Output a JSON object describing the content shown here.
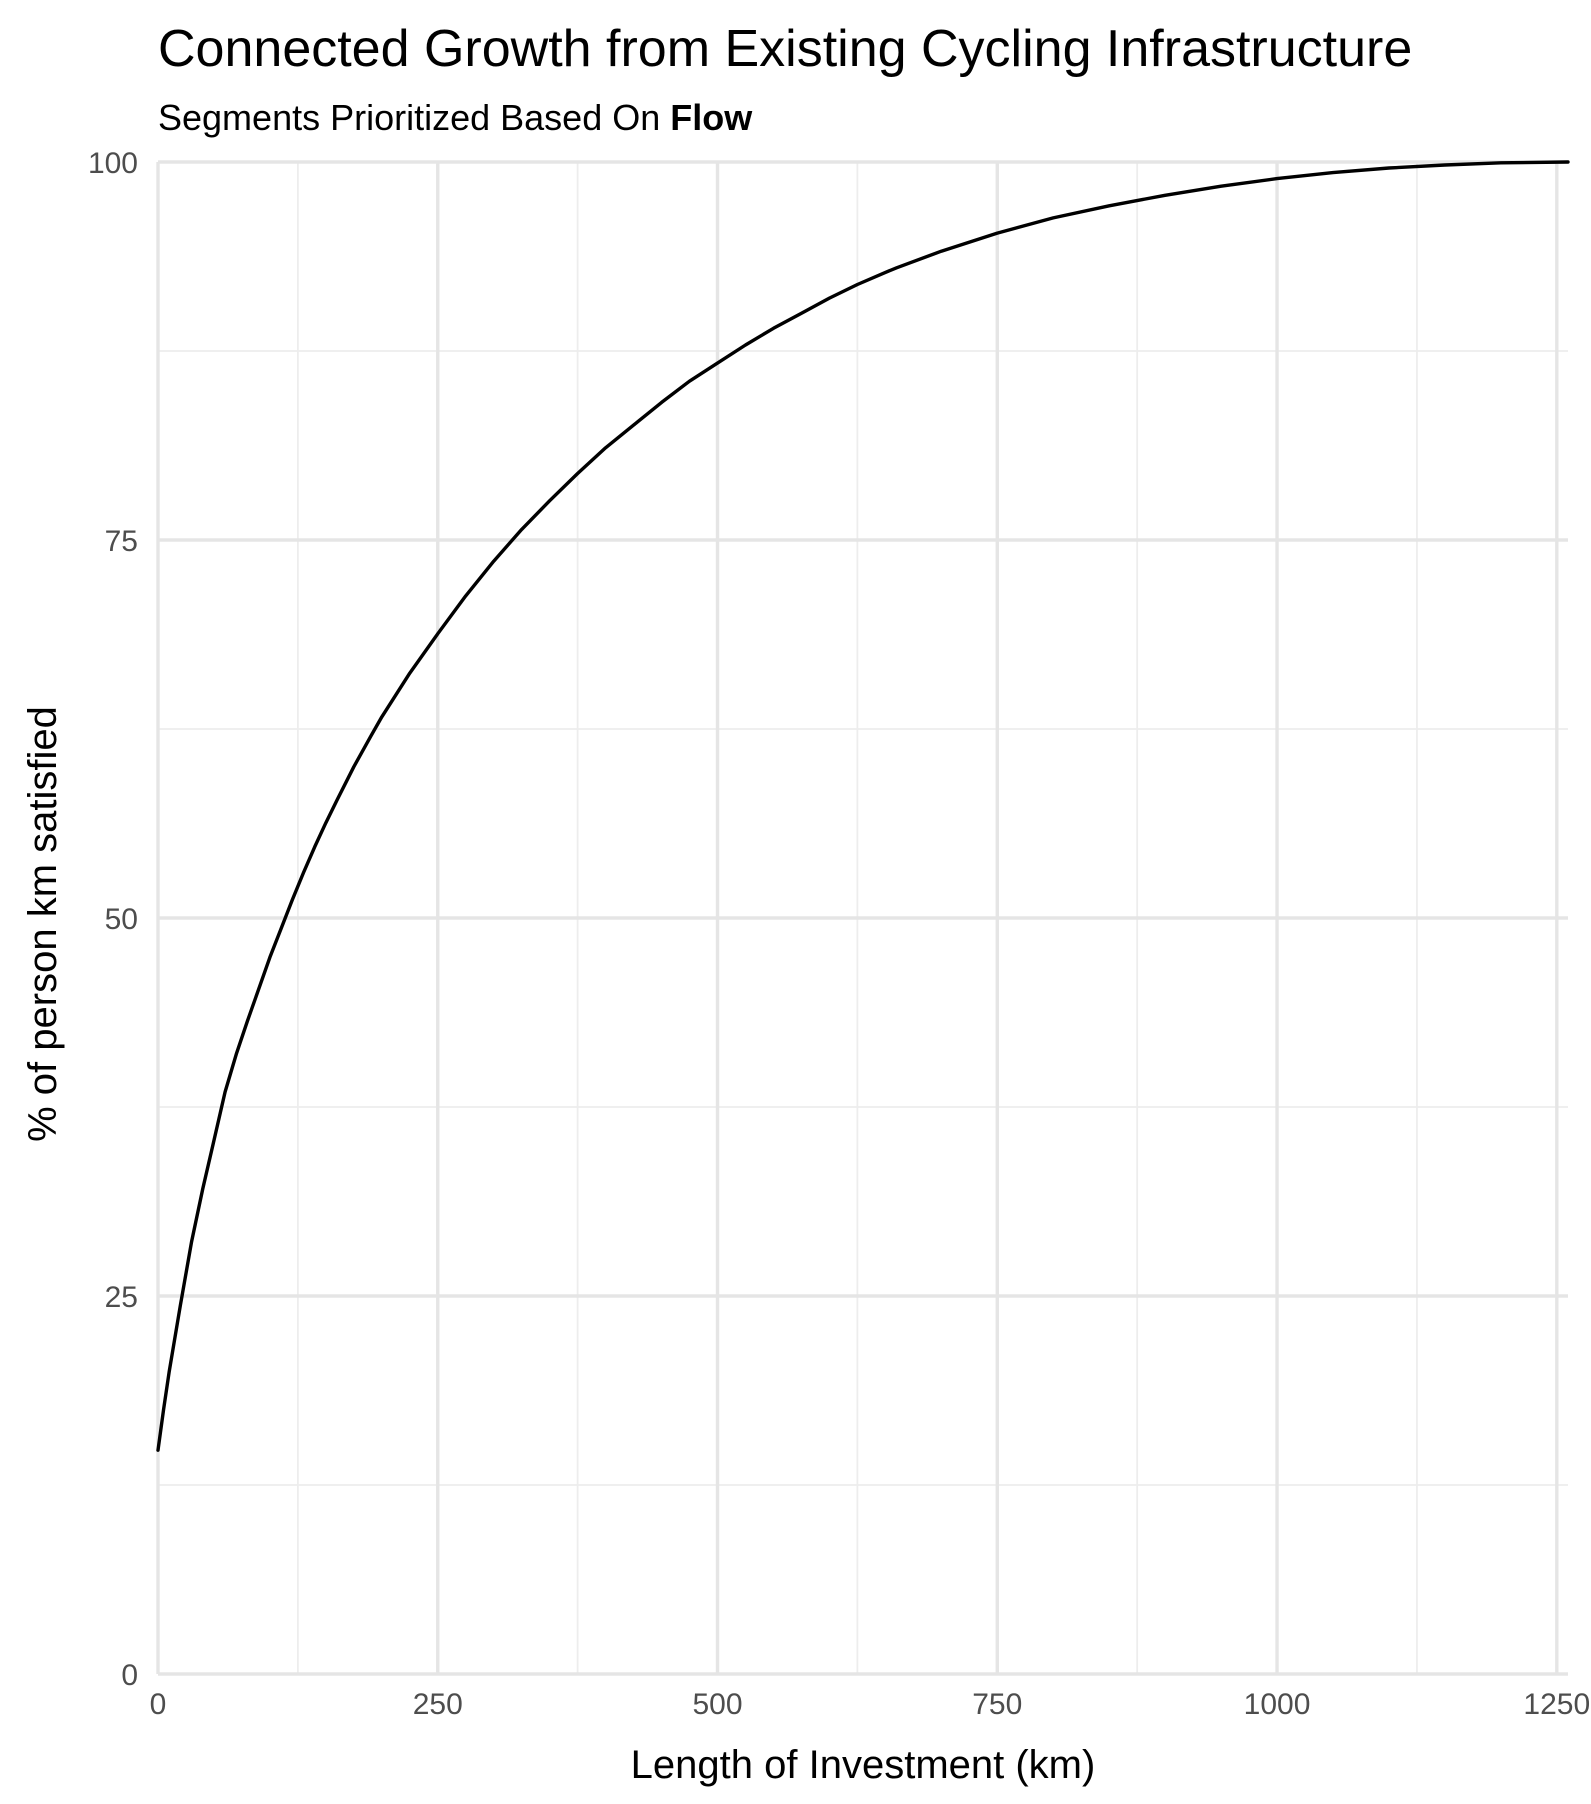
{
  "chart_data": {
    "type": "line",
    "title": "Connected Growth from Existing Cycling Infrastructure",
    "subtitle_prefix": "Segments Prioritized Based On ",
    "subtitle_emphasis": "Flow",
    "xlabel": "Length of Investment (km)",
    "ylabel": "% of person km satisfied",
    "xlim": [
      0,
      1260
    ],
    "ylim": [
      0,
      100
    ],
    "x_ticks": [
      0,
      250,
      500,
      750,
      1000,
      1250
    ],
    "x_tick_labels": [
      "0",
      "250",
      "500",
      "750",
      "1000",
      "1250"
    ],
    "y_ticks": [
      0,
      25,
      50,
      75,
      100
    ],
    "y_tick_labels": [
      "0",
      "25",
      "50",
      "75",
      "100"
    ],
    "grid": true,
    "series": [
      {
        "color": "#000000",
        "x": [
          0,
          5,
          10,
          20,
          30,
          40,
          50,
          60,
          70,
          80,
          90,
          100,
          110,
          120,
          130,
          140,
          150,
          160,
          175,
          190,
          200,
          225,
          250,
          275,
          300,
          325,
          350,
          375,
          400,
          425,
          450,
          475,
          500,
          525,
          550,
          575,
          600,
          625,
          650,
          660,
          700,
          750,
          800,
          850,
          900,
          950,
          1000,
          1050,
          1100,
          1150,
          1200,
          1260
        ],
        "y": [
          14.8,
          17.5,
          20.0,
          24.4,
          28.6,
          32.1,
          35.3,
          38.5,
          41.0,
          43.2,
          45.3,
          47.4,
          49.3,
          51.2,
          53.0,
          54.7,
          56.3,
          57.8,
          60.0,
          62.0,
          63.3,
          66.2,
          68.8,
          71.3,
          73.6,
          75.7,
          77.6,
          79.4,
          81.1,
          82.6,
          84.1,
          85.5,
          86.7,
          87.9,
          89.0,
          90.0,
          91.0,
          91.9,
          92.7,
          93.0,
          94.1,
          95.3,
          96.3,
          97.1,
          97.8,
          98.4,
          98.9,
          99.3,
          99.6,
          99.8,
          99.95,
          100.0
        ]
      }
    ]
  }
}
